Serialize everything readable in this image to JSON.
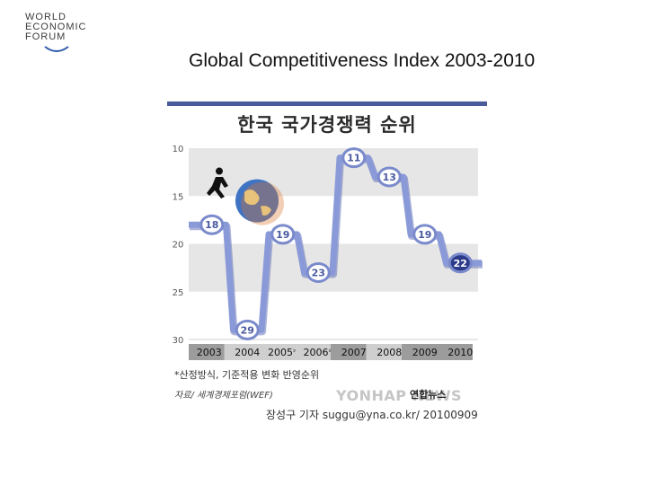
{
  "logo": {
    "lines": [
      "WORLD",
      "ECONOMIC",
      "FORUM"
    ]
  },
  "slide_title": "Global Competitiveness Index 2003-2010",
  "chart_data": {
    "type": "line",
    "title": "한국 국가경쟁력 순위",
    "categories": [
      "2003",
      "2004",
      "2005*",
      "2006*",
      "2007",
      "2008",
      "2009",
      "2010"
    ],
    "values": [
      18,
      29,
      19,
      23,
      11,
      13,
      19,
      22
    ],
    "ylim": [
      10,
      30
    ],
    "y_ticks": [
      "10",
      "15",
      "20",
      "25",
      "30"
    ],
    "y_inverted": true,
    "grid": "alternating horizontal bands",
    "highlighted_years": [
      "2003",
      "2007",
      "2009",
      "2010"
    ],
    "footnote": "*산정방식, 기준적용 변화 반영순위",
    "source": "자료/ 세계경제포럼(WEF)",
    "watermark": "YONHAP NEWS",
    "agency": "연합뉴스",
    "credit": "장성구 기자  suggu@yna.co.kr/ 20100909",
    "colors": {
      "line": "#8a9ad8",
      "line_shadow": "#5a6ab0",
      "marker_fill": "#ffffff",
      "marker_stroke": "#7a8acb",
      "last_marker_fill": "#2c3a8a",
      "band": "#e6e6e6",
      "header_bar": "#4a5a9a",
      "highlight_year_bg": "#9c9c9c",
      "year_bg": "#cfcfcf"
    }
  }
}
